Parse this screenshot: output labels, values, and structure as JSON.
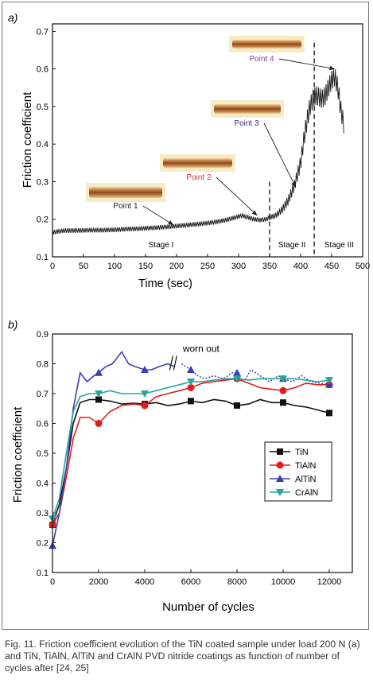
{
  "caption": "Fig. 11. Friction coefficient evolution of the TiN coated sample under load 200 N (a) and TiN, TiAlN, AlTiN and CrAlN PVD nitride coatings as function of number of cycles after [24, 25]",
  "chart_data": [
    {
      "panel_label": "a)",
      "type": "line",
      "xlabel": "Time (sec)",
      "ylabel": "Friction coefficient",
      "xlim": [
        0,
        500
      ],
      "ylim": [
        0.1,
        0.72
      ],
      "xticks": [
        "0",
        "50",
        "100",
        "150",
        "200",
        "250",
        "300",
        "350",
        "400",
        "450",
        "500"
      ],
      "yticks": [
        "0.1",
        "0.2",
        "0.3",
        "0.4",
        "0.5",
        "0.6",
        "0.7"
      ],
      "stage_dividers": [
        350,
        422
      ],
      "stages": [
        "Stage I",
        "Stage II",
        "Stage III"
      ],
      "annotations": [
        {
          "label": "Point 1",
          "color": "#222222",
          "points_to": [
            195,
            0.185
          ]
        },
        {
          "label": "Point 2",
          "color": "#e02a2a",
          "points_to": [
            330,
            0.21
          ]
        },
        {
          "label": "Point 3",
          "color": "#2c2f8c",
          "points_to": [
            392,
            0.285
          ]
        },
        {
          "label": "Point 4",
          "color": "#7b3fa8",
          "points_to": [
            455,
            0.6
          ]
        }
      ],
      "series": [
        {
          "x": [
            0,
            10,
            20,
            40,
            60,
            80,
            100,
            120,
            140,
            160,
            180,
            200,
            220,
            240,
            260,
            280,
            295,
            305,
            315,
            325,
            335,
            345,
            350,
            360,
            370,
            380,
            390,
            400,
            405,
            410,
            415,
            420,
            425,
            430,
            435,
            440,
            445,
            450,
            455,
            460,
            465,
            470
          ],
          "y": [
            0.165,
            0.168,
            0.17,
            0.17,
            0.171,
            0.171,
            0.172,
            0.174,
            0.175,
            0.177,
            0.179,
            0.182,
            0.185,
            0.188,
            0.192,
            0.198,
            0.205,
            0.21,
            0.205,
            0.2,
            0.198,
            0.2,
            0.205,
            0.21,
            0.225,
            0.25,
            0.29,
            0.35,
            0.41,
            0.46,
            0.5,
            0.52,
            0.53,
            0.525,
            0.52,
            0.53,
            0.55,
            0.57,
            0.58,
            0.55,
            0.49,
            0.45
          ],
          "amplitude": [
            0.012,
            0.012,
            0.012,
            0.012,
            0.012,
            0.012,
            0.012,
            0.012,
            0.012,
            0.012,
            0.012,
            0.012,
            0.012,
            0.012,
            0.012,
            0.012,
            0.012,
            0.012,
            0.012,
            0.012,
            0.012,
            0.012,
            0.013,
            0.015,
            0.02,
            0.025,
            0.03,
            0.04,
            0.045,
            0.05,
            0.05,
            0.05,
            0.05,
            0.05,
            0.05,
            0.05,
            0.05,
            0.05,
            0.05,
            0.05,
            0.05,
            0.05
          ]
        }
      ]
    },
    {
      "panel_label": "b)",
      "type": "line",
      "xlabel": "Number of cycles",
      "ylabel": "Friction coefficient",
      "xlim": [
        0,
        13000
      ],
      "ylim": [
        0.1,
        0.9
      ],
      "xticks": [
        "0",
        "2000",
        "4000",
        "6000",
        "8000",
        "10000",
        "12000"
      ],
      "yticks": [
        "0.1",
        "0.2",
        "0.3",
        "0.4",
        "0.5",
        "0.6",
        "0.7",
        "0.8",
        "0.9"
      ],
      "annotation": "worn out",
      "legend_position": "center-right",
      "series": [
        {
          "name": "TiN",
          "color": "#111111",
          "marker": "square",
          "x": [
            0,
            300,
            600,
            900,
            1200,
            1600,
            2000,
            2500,
            3000,
            3500,
            4000,
            4500,
            5000,
            5500,
            6000,
            6500,
            7000,
            7500,
            8000,
            8500,
            9000,
            9500,
            10000,
            10500,
            11000,
            11500,
            12000
          ],
          "y": [
            0.26,
            0.33,
            0.45,
            0.6,
            0.67,
            0.68,
            0.68,
            0.675,
            0.665,
            0.668,
            0.665,
            0.67,
            0.66,
            0.665,
            0.675,
            0.67,
            0.68,
            0.675,
            0.66,
            0.665,
            0.68,
            0.67,
            0.67,
            0.66,
            0.655,
            0.645,
            0.635
          ]
        },
        {
          "name": "TiAlN",
          "color": "#e31b1b",
          "marker": "circle",
          "x": [
            0,
            300,
            600,
            900,
            1200,
            1600,
            2000,
            2500,
            3000,
            3500,
            4000,
            4500,
            5000,
            5500,
            6000,
            6500,
            7000,
            7500,
            8000,
            8500,
            9000,
            9500,
            10000,
            10500,
            11000,
            11500,
            12000
          ],
          "y": [
            0.26,
            0.3,
            0.42,
            0.55,
            0.62,
            0.62,
            0.6,
            0.64,
            0.66,
            0.665,
            0.66,
            0.69,
            0.7,
            0.71,
            0.72,
            0.735,
            0.74,
            0.745,
            0.75,
            0.735,
            0.72,
            0.715,
            0.71,
            0.72,
            0.735,
            0.73,
            0.73
          ]
        },
        {
          "name": "AlTiN",
          "color": "#3a3fb5",
          "marker": "triangle-up",
          "x": [
            0,
            300,
            600,
            900,
            1200,
            1500,
            1800,
            2000,
            2300,
            2600,
            3000,
            3300,
            3600,
            4000,
            4300,
            4600,
            5000,
            5300,
            5600,
            6000,
            6300,
            6600,
            7000,
            7400,
            7800,
            8000,
            8300,
            8600,
            9000,
            9400,
            9800,
            10000,
            10400,
            10800,
            11200,
            11600,
            12000
          ],
          "y": [
            0.19,
            0.3,
            0.45,
            0.65,
            0.77,
            0.74,
            0.76,
            0.77,
            0.79,
            0.8,
            0.84,
            0.8,
            0.79,
            0.78,
            0.78,
            0.79,
            0.8,
            0.79,
            0.8,
            0.78,
            0.76,
            0.75,
            0.76,
            0.75,
            0.77,
            0.77,
            0.74,
            0.78,
            0.76,
            0.74,
            0.76,
            0.75,
            0.74,
            0.76,
            0.74,
            0.735,
            0.73
          ]
        },
        {
          "name": "CrAlN",
          "color": "#2aa39a",
          "marker": "triangle-down",
          "x": [
            0,
            300,
            600,
            900,
            1200,
            1600,
            2000,
            2500,
            3000,
            3500,
            4000,
            4500,
            5000,
            5500,
            6000,
            6500,
            7000,
            7500,
            8000,
            8500,
            9000,
            9500,
            10000,
            10500,
            11000,
            11500,
            12000
          ],
          "y": [
            0.28,
            0.35,
            0.5,
            0.64,
            0.69,
            0.7,
            0.7,
            0.71,
            0.7,
            0.7,
            0.7,
            0.71,
            0.72,
            0.73,
            0.74,
            0.74,
            0.745,
            0.75,
            0.75,
            0.745,
            0.75,
            0.75,
            0.75,
            0.75,
            0.745,
            0.74,
            0.745
          ]
        }
      ]
    }
  ]
}
